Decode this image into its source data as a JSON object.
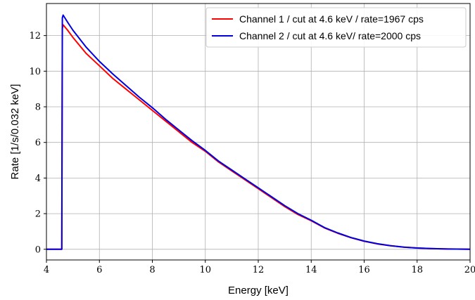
{
  "chart_data": {
    "type": "line",
    "xlabel": "Energy [keV]",
    "ylabel": "Rate [1/s/0.032 keV]",
    "xlim": [
      4,
      20
    ],
    "ylim": [
      -0.6,
      13.8
    ],
    "xticks": [
      4,
      6,
      8,
      10,
      12,
      14,
      16,
      18,
      20
    ],
    "yticks": [
      0,
      2,
      4,
      6,
      8,
      10,
      12
    ],
    "grid": true,
    "legend_position": "top-right",
    "series": [
      {
        "name": "Channel 1 / cut at 4.6 keV / rate=1967 cps",
        "color": "#ff0000",
        "x": [
          4.0,
          4.58,
          4.6,
          4.63,
          4.8,
          5.0,
          5.5,
          6.0,
          6.5,
          7.0,
          7.5,
          8.0,
          8.5,
          9.0,
          9.5,
          10.0,
          10.5,
          11.0,
          11.5,
          12.0,
          12.5,
          13.0,
          13.5,
          14.0,
          14.5,
          15.0,
          15.5,
          16.0,
          16.5,
          17.0,
          17.5,
          18.0,
          18.5,
          19.0,
          19.5,
          20.0
        ],
        "y": [
          0.0,
          0.0,
          12.4,
          12.6,
          12.3,
          11.9,
          11.0,
          10.3,
          9.6,
          9.0,
          8.4,
          7.8,
          7.2,
          6.6,
          6.0,
          5.5,
          4.9,
          4.4,
          3.9,
          3.4,
          2.9,
          2.4,
          1.95,
          1.6,
          1.2,
          0.9,
          0.65,
          0.45,
          0.3,
          0.2,
          0.12,
          0.07,
          0.04,
          0.02,
          0.01,
          0.0
        ]
      },
      {
        "name": "Channel 2 / cut at 4.6 keV/ rate=2000 cps",
        "color": "#0000e0",
        "x": [
          4.0,
          4.58,
          4.6,
          4.63,
          4.8,
          5.0,
          5.5,
          6.0,
          6.5,
          7.0,
          7.5,
          8.0,
          8.5,
          9.0,
          9.5,
          10.0,
          10.5,
          11.0,
          11.5,
          12.0,
          12.5,
          13.0,
          13.5,
          14.0,
          14.5,
          15.0,
          15.5,
          16.0,
          16.5,
          17.0,
          17.5,
          18.0,
          18.5,
          19.0,
          19.5,
          20.0
        ],
        "y": [
          0.0,
          0.0,
          13.0,
          13.15,
          12.75,
          12.3,
          11.35,
          10.55,
          9.85,
          9.2,
          8.55,
          7.95,
          7.3,
          6.7,
          6.1,
          5.55,
          4.95,
          4.45,
          3.95,
          3.45,
          2.95,
          2.45,
          2.0,
          1.63,
          1.22,
          0.92,
          0.66,
          0.46,
          0.31,
          0.2,
          0.12,
          0.07,
          0.04,
          0.02,
          0.01,
          0.0
        ]
      }
    ]
  }
}
